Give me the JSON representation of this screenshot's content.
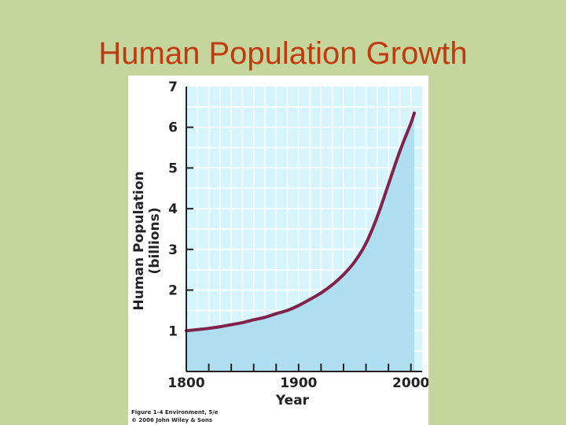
{
  "slide": {
    "title": "Human Population Growth"
  },
  "chart_data": {
    "type": "area",
    "title": "",
    "xlabel": "Year",
    "ylabel_line1": "Human Population",
    "ylabel_line2": "(billions)",
    "xlim": [
      1800,
      2010
    ],
    "ylim": [
      0,
      7
    ],
    "x_ticks": [
      1800,
      1900,
      2000
    ],
    "y_ticks": [
      1,
      2,
      3,
      4,
      5,
      6,
      7
    ],
    "grid": true,
    "series": [
      {
        "x": [
          1800,
          1810,
          1820,
          1830,
          1840,
          1850,
          1860,
          1870,
          1880,
          1890,
          1900,
          1910,
          1920,
          1930,
          1940,
          1950,
          1960,
          1970,
          1980,
          1990,
          2000,
          2003
        ],
        "y": [
          1.0,
          1.03,
          1.06,
          1.1,
          1.15,
          1.2,
          1.27,
          1.33,
          1.42,
          1.5,
          1.62,
          1.77,
          1.93,
          2.13,
          2.38,
          2.7,
          3.15,
          3.8,
          4.6,
          5.4,
          6.1,
          6.35
        ]
      }
    ],
    "colors": {
      "line": "#80224a",
      "fill": "#aedeef",
      "plot_bg": "#d6f4fd",
      "grid": "#ffffff"
    },
    "caption_line1": "Figure 1-4  Environment, 5/e",
    "caption_line2": "© 2006 John Wiley & Sons"
  }
}
